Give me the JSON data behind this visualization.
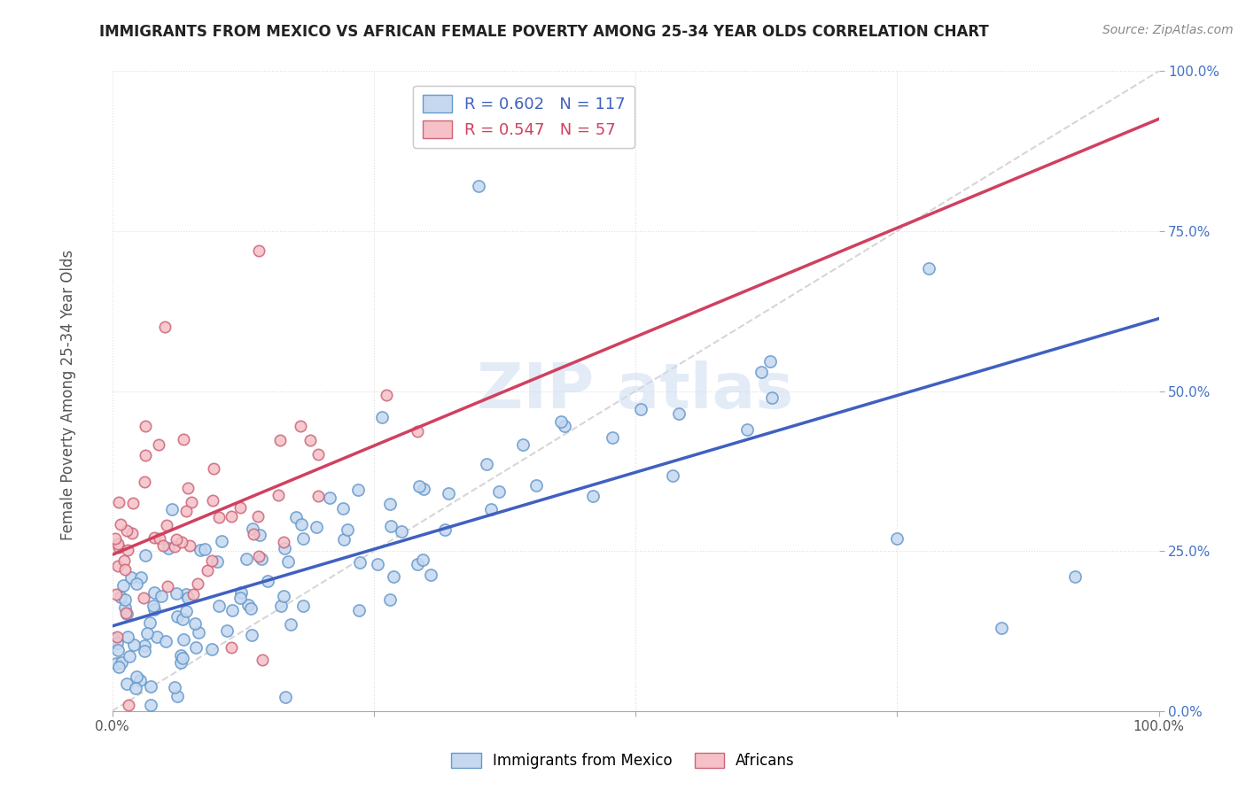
{
  "title": "IMMIGRANTS FROM MEXICO VS AFRICAN FEMALE POVERTY AMONG 25-34 YEAR OLDS CORRELATION CHART",
  "source": "Source: ZipAtlas.com",
  "ylabel": "Female Poverty Among 25-34 Year Olds",
  "bottom_labels": [
    "Immigrants from Mexico",
    "Africans"
  ],
  "blue_R": 0.602,
  "blue_N": 117,
  "pink_R": 0.547,
  "pink_N": 57,
  "blue_face": "#c5d8f0",
  "blue_edge": "#6699cc",
  "pink_face": "#f5c0c8",
  "pink_edge": "#cc6677",
  "blue_line": "#4060c0",
  "pink_line": "#d04060",
  "diag_color": "#cccccc",
  "grid_color": "#dddddd",
  "title_color": "#222222",
  "source_color": "#888888",
  "ylabel_color": "#555555",
  "watermark_color": "#ccddf0",
  "ytick_color": "#4472c4",
  "xtick_color": "#555555",
  "blue_intercept": 0.1,
  "blue_slope": 0.65,
  "pink_intercept": 0.22,
  "pink_slope": 0.75
}
